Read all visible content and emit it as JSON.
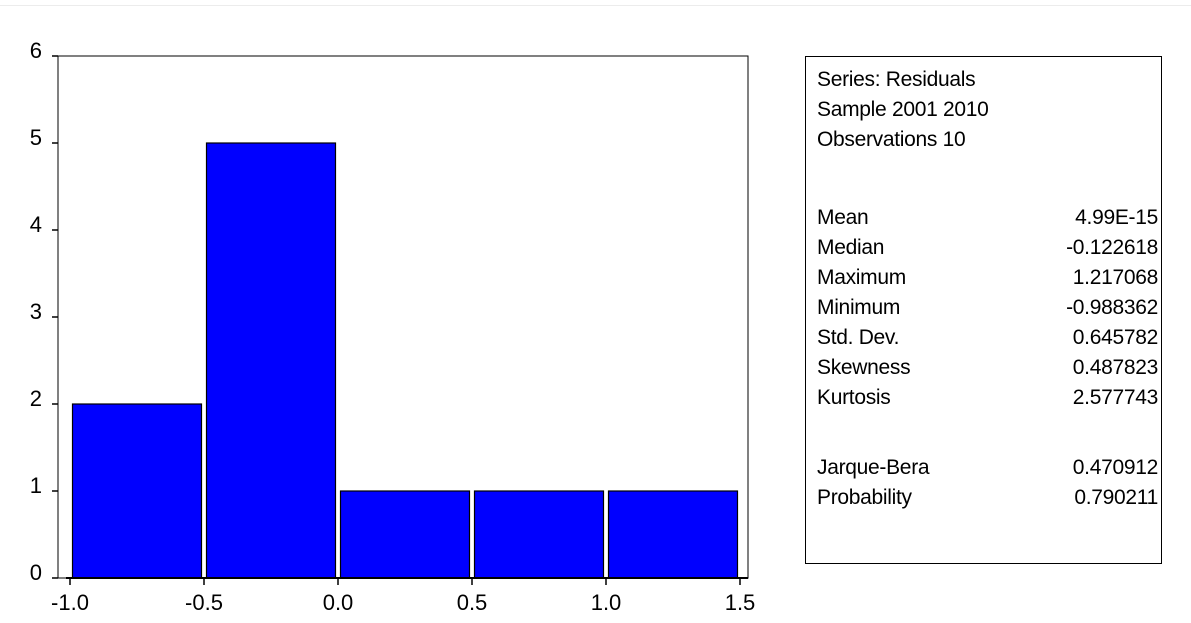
{
  "chart_data": {
    "type": "bar",
    "bins": [
      {
        "from": -1.0,
        "to": -0.5,
        "value": 2
      },
      {
        "from": -0.5,
        "to": 0.0,
        "value": 5
      },
      {
        "from": 0.0,
        "to": 0.5,
        "value": 1
      },
      {
        "from": 0.5,
        "to": 1.0,
        "value": 1
      },
      {
        "from": 1.0,
        "to": 1.5,
        "value": 1
      }
    ],
    "xlim": [
      -1.0,
      1.5
    ],
    "ylim": [
      0,
      6
    ],
    "x_ticks": [
      "-1.0",
      "-0.5",
      "0.0",
      "0.5",
      "1.0",
      "1.5"
    ],
    "y_ticks": [
      "0",
      "1",
      "2",
      "3",
      "4",
      "5",
      "6"
    ],
    "bar_color": "#0000ff",
    "grid": false,
    "legend": "none"
  },
  "stats": {
    "header": [
      "Series: Residuals",
      "Sample 2001 2010",
      "Observations 10"
    ],
    "rows": [
      {
        "label": "Mean",
        "value": "4.99E-15"
      },
      {
        "label": "Median",
        "value": "-0.122618"
      },
      {
        "label": "Maximum",
        "value": "1.217068"
      },
      {
        "label": "Minimum",
        "value": "-0.988362"
      },
      {
        "label": "Std. Dev.",
        "value": "0.645782"
      },
      {
        "label": "Skewness",
        "value": "0.487823"
      },
      {
        "label": "Kurtosis",
        "value": "2.577743"
      },
      {
        "label": "Jarque-Bera",
        "value": "0.470912"
      },
      {
        "label": "Probability",
        "value": "0.790211"
      }
    ]
  }
}
